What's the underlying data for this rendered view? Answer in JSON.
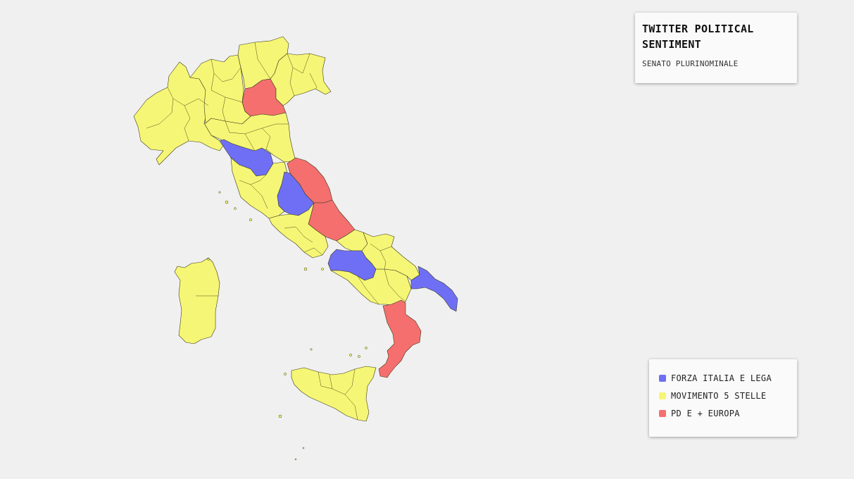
{
  "info": {
    "title": "TWITTER POLITICAL SENTIMENT",
    "subtitle": "SENATO PLURINOMINALE"
  },
  "colors": {
    "forza_italia_lega": "#6f6ff5",
    "movimento_5_stelle": "#f6f676",
    "pd_europa": "#f56f6f"
  },
  "legend": {
    "items": [
      {
        "label": "FORZA ITALIA E LEGA",
        "color": "#6f6ff5"
      },
      {
        "label": "MOVIMENTO 5 STELLE",
        "color": "#f6f676"
      },
      {
        "label": "PD E + EUROPA",
        "color": "#f56f6f"
      }
    ]
  },
  "regions": [
    {
      "name": "Nord-Ovest (Piemonte, Valle d'Aosta, Liguria)",
      "party": "MOVIMENTO 5 STELLE"
    },
    {
      "name": "Lombardia",
      "party": "MOVIMENTO 5 STELLE"
    },
    {
      "name": "Trentino-Alto Adige",
      "party": "MOVIMENTO 5 STELLE"
    },
    {
      "name": "Veneto (area centrale)",
      "party": "PD E + EUROPA"
    },
    {
      "name": "Veneto / Friuli",
      "party": "MOVIMENTO 5 STELLE"
    },
    {
      "name": "Emilia-Romagna",
      "party": "MOVIMENTO 5 STELLE"
    },
    {
      "name": "Toscana (area nord)",
      "party": "FORZA ITALIA E LEGA"
    },
    {
      "name": "Toscana",
      "party": "MOVIMENTO 5 STELLE"
    },
    {
      "name": "Umbria",
      "party": "FORZA ITALIA E LEGA"
    },
    {
      "name": "Marche",
      "party": "PD E + EUROPA"
    },
    {
      "name": "Abruzzo",
      "party": "PD E + EUROPA"
    },
    {
      "name": "Lazio",
      "party": "MOVIMENTO 5 STELLE"
    },
    {
      "name": "Molise",
      "party": "MOVIMENTO 5 STELLE"
    },
    {
      "name": "Campania (area interna)",
      "party": "FORZA ITALIA E LEGA"
    },
    {
      "name": "Campania / Basilicata",
      "party": "MOVIMENTO 5 STELLE"
    },
    {
      "name": "Puglia (nord)",
      "party": "MOVIMENTO 5 STELLE"
    },
    {
      "name": "Puglia (sud)",
      "party": "FORZA ITALIA E LEGA"
    },
    {
      "name": "Calabria",
      "party": "PD E + EUROPA"
    },
    {
      "name": "Sicilia",
      "party": "MOVIMENTO 5 STELLE"
    },
    {
      "name": "Sardegna",
      "party": "MOVIMENTO 5 STELLE"
    }
  ]
}
